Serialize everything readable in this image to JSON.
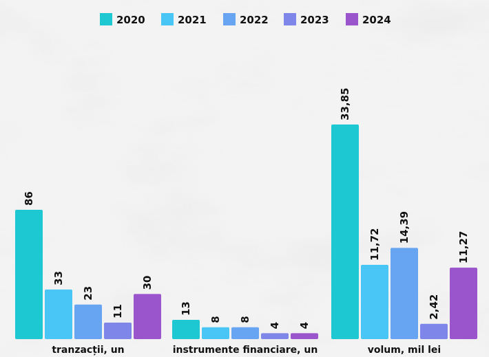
{
  "chart_data": {
    "type": "bar",
    "legend_position": "top",
    "series": [
      {
        "name": "2020",
        "color": "#1ec8d2"
      },
      {
        "name": "2021",
        "color": "#4ac6f6"
      },
      {
        "name": "2022",
        "color": "#67a5f3"
      },
      {
        "name": "2023",
        "color": "#7f86ea"
      },
      {
        "name": "2024",
        "color": "#9b55cc"
      }
    ],
    "groups": [
      {
        "category": "tranzacții, un",
        "values": [
          86,
          33,
          23,
          11,
          30
        ],
        "labels": [
          "86",
          "33",
          "23",
          "11",
          "30"
        ]
      },
      {
        "category": "instrumente financiare, un",
        "values": [
          13,
          8,
          8,
          4,
          4
        ],
        "labels": [
          "13",
          "8",
          "8",
          "4",
          "4"
        ]
      },
      {
        "category": "volum, mil lei",
        "values": [
          33.85,
          11.72,
          14.39,
          2.42,
          11.27
        ],
        "labels": [
          "33,85",
          "11,72",
          "14,39",
          "2,42",
          "11,27"
        ]
      }
    ]
  }
}
